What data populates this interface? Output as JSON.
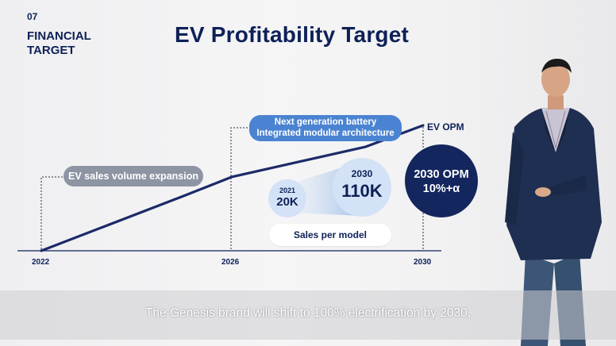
{
  "header": {
    "section_number": "07",
    "section_title": "FINANCIAL TARGET",
    "title": "EV Profitability Target"
  },
  "chart_labels": {
    "volume_expansion": "EV sales volume expansion",
    "next_gen_line1": "Next generation battery",
    "next_gen_line2": "Integrated modular architecture",
    "ev_opm": "EV OPM",
    "sales_per_model": "Sales per model"
  },
  "circles": {
    "small": {
      "year": "2021",
      "value": "20K"
    },
    "big": {
      "year": "2030",
      "value": "110K"
    },
    "opm": {
      "line1": "2030 OPM",
      "line2": "10%+α"
    }
  },
  "colors": {
    "navy": "#0e2157",
    "opm_circle": "#14265e",
    "grey_pill": "#8d95a3",
    "blue_pill": "#4a83d1",
    "light_circle": "#d3e2f6"
  },
  "chart_data": {
    "type": "line",
    "x": [
      "2022",
      "2026",
      "2030"
    ],
    "title": "",
    "xlabel": "",
    "ylabel": "",
    "series": [
      {
        "points": [
          [
            2022,
            0
          ],
          [
            2025,
            0.44
          ],
          [
            2026,
            0.59
          ],
          [
            2028.8,
            0.83
          ],
          [
            2030,
            1.0
          ]
        ]
      }
    ],
    "grid": false
  },
  "subtitle": "The Genesis brand will shift to 100% electrification by 2030,"
}
